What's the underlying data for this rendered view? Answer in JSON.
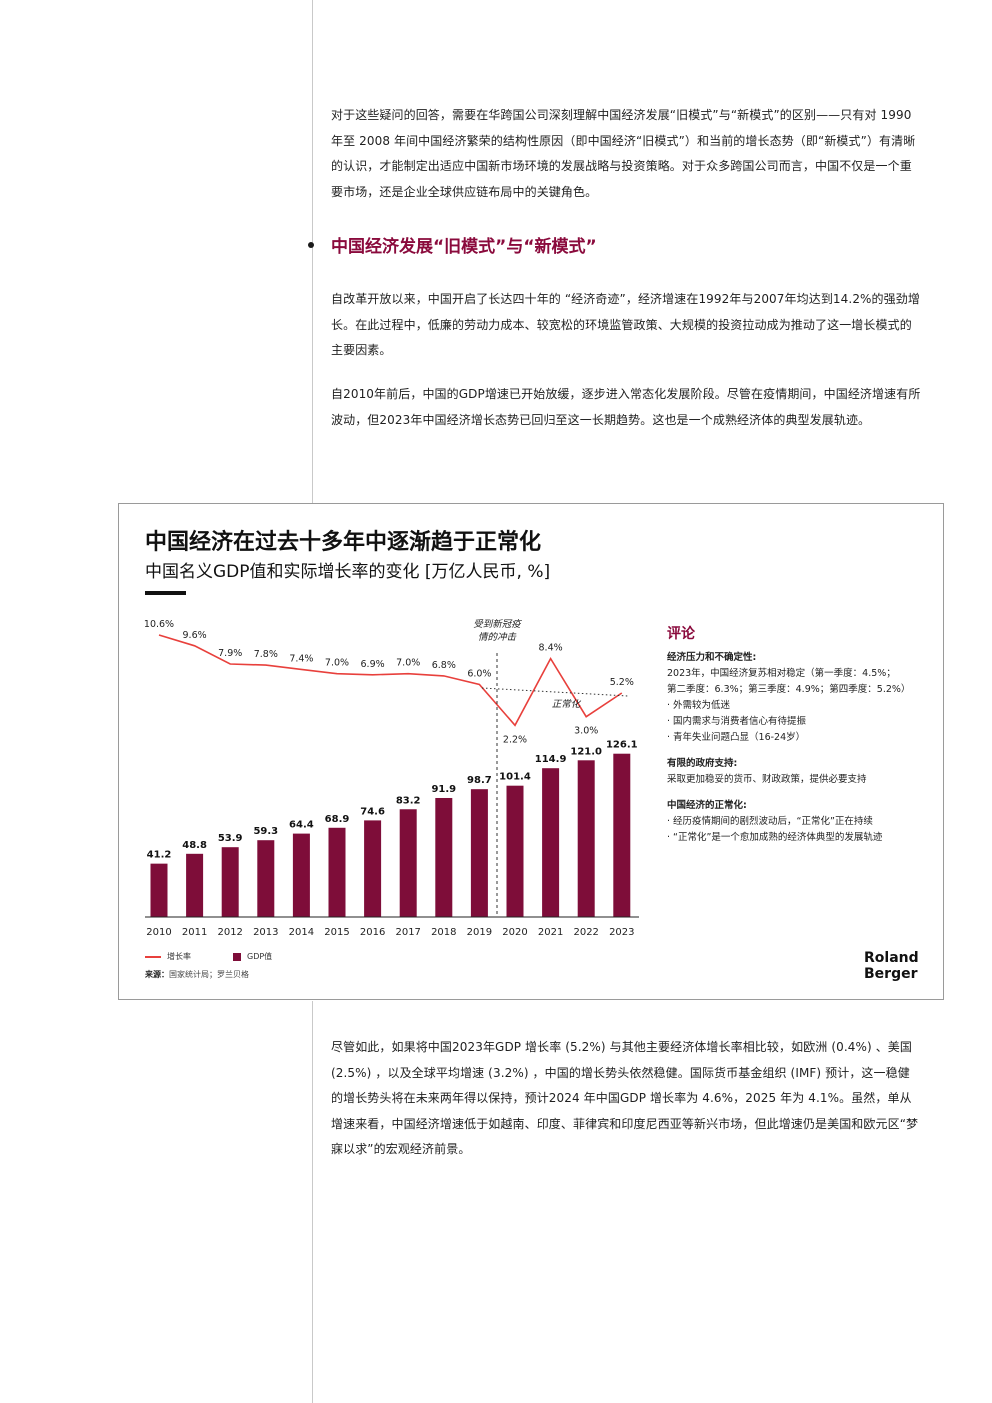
{
  "paragraphs": {
    "p1": "对于这些疑问的回答，需要在华跨国公司深刻理解中国经济发展“旧模式”与“新模式”的区别——只有对 1990 年至 2008 年间中国经济繁荣的结构性原因（即中国经济“旧模式”）和当前的增长态势（即“新模式”）有清晰的认识，才能制定出适应中国新市场环境的发展战略与投资策略。对于众多跨国公司而言，中国不仅是一个重要市场，还是企业全球供应链布局中的关键角色。",
    "p2": "自改革开放以来，中国开启了长达四十年的 “经济奇迹”，经济增速在1992年与2007年均达到14.2%的强劲增长。在此过程中，低廉的劳动力成本、较宽松的环境监管政策、大规模的投资拉动成为推动了这一增长模式的主要因素。",
    "p3": "自2010年前后，中国的GDP增速已开始放缓，逐步进入常态化发展阶段。尽管在疫情期间，中国经济增速有所波动，但2023年中国经济增长态势已回归至这一长期趋势。这也是一个成熟经济体的典型发展轨迹。",
    "p4": "尽管如此，如果将中国2023年GDP 增长率 (5.2%) 与其他主要经济体增长率相比较，如欧洲 (0.4%) 、美国 (2.5%) ，以及全球平均增速 (3.2%) ，中国的增长势头依然稳健。国际货币基金组织 (IMF) 预计，这一稳健的增长势头将在未来两年得以保持，预计2024 年中国GDP 增长率为 4.6%，2025 年为 4.1%。虽然，单从增速来看，中国经济增速低于如越南、印度、菲律宾和印度尼西亚等新兴市场，但此增速仍是美国和欧元区“梦寐以求”的宏观经济前景。"
  },
  "heading": "中国经济发展“旧模式”与“新模式”",
  "chart": {
    "title": "中国经济在过去十多年中逐渐趋于正常化",
    "subtitle": "中国名义GDP值和实际增长率的变化 [万亿人民币, %]",
    "covid_note": [
      "受到新冠疫",
      "情的冲击"
    ],
    "normal_label": "正常化",
    "legend_growth": "增长率",
    "legend_gdp": "GDP值",
    "source_label": "来源：",
    "source_text": "国家统计局；罗兰贝格",
    "brand_line1": "Roland",
    "brand_line2": "Berger"
  },
  "comment": {
    "title": "评论",
    "s1_head": "经济压力和不确定性:",
    "s1_lines": [
      "2023年，中国经济复苏相对稳定（第一季度：4.5%；",
      "第二季度：6.3%；第三季度：4.9%；第四季度：5.2%）",
      "· 外需较为低迷",
      "· 国内需求与消费者信心有待提振",
      "· 青年失业问题凸显（16-24岁）"
    ],
    "s2_head": "有限的政府支持:",
    "s2_lines": [
      "采取更加稳妥的货币、财政政策，提供必要支持"
    ],
    "s3_head": "中国经济的正常化:",
    "s3_lines": [
      "· 经历疫情期间的剧烈波动后，“正常化”正在持续",
      "· “正常化”是一个愈加成熟的经济体典型的发展轨迹"
    ]
  },
  "colors": {
    "accent": "#8a0a3c",
    "bar": "#7e0d39",
    "line": "#e8403c"
  },
  "chart_data": {
    "type": "bar",
    "categories": [
      "2010",
      "2011",
      "2012",
      "2013",
      "2014",
      "2015",
      "2016",
      "2017",
      "2018",
      "2019",
      "2020",
      "2021",
      "2022",
      "2023"
    ],
    "series": [
      {
        "name": "GDP值",
        "type": "bar",
        "values": [
          41.2,
          48.8,
          53.9,
          59.3,
          64.4,
          68.9,
          74.6,
          83.2,
          91.9,
          98.7,
          101.4,
          114.9,
          121.0,
          126.1
        ]
      },
      {
        "name": "增长率",
        "type": "line",
        "values": [
          10.6,
          9.6,
          7.9,
          7.8,
          7.4,
          7.0,
          6.9,
          7.0,
          6.8,
          6.0,
          2.2,
          8.4,
          3.0,
          5.2
        ]
      }
    ],
    "growth_labels": [
      "10.6%",
      "9.6%",
      "7.9%",
      "7.8%",
      "7.4%",
      "7.0%",
      "6.9%",
      "7.0%",
      "6.8%",
      "6.0%",
      "2.2%",
      "8.4%",
      "3.0%",
      "5.2%"
    ],
    "gdp_labels": [
      "41.2",
      "48.8",
      "53.9",
      "59.3",
      "64.4",
      "68.9",
      "74.6",
      "83.2",
      "91.9",
      "98.7",
      "101.4",
      "114.9",
      "121.0",
      "126.1"
    ],
    "title": "中国经济在过去十多年中逐渐趋于正常化",
    "subtitle": "中国名义GDP值和实际增长率的变化 [万亿人民币, %]",
    "legend": "bottom-left",
    "grid": false
  }
}
